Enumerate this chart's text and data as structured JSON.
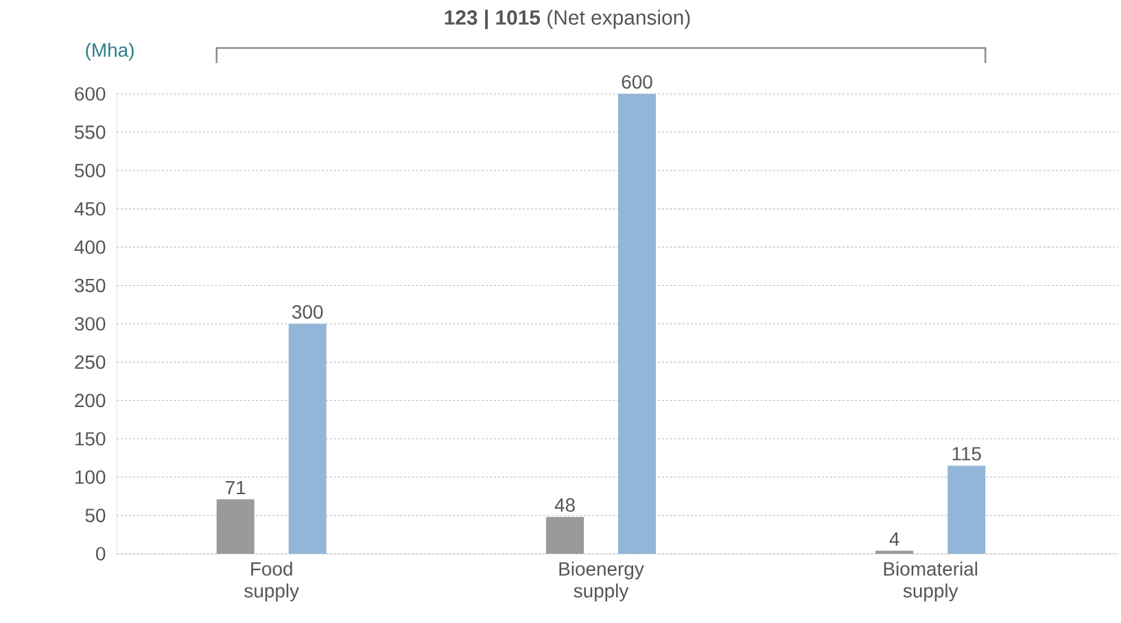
{
  "chart_data": {
    "type": "bar",
    "title": "**123 | 1015** (Net expansion)",
    "ylabel": "(Mha)",
    "categories": [
      "Food supply",
      "Bioenergy supply",
      "Biomaterial supply"
    ],
    "series": [
      {
        "color": "#9a9a9a",
        "values": [
          71,
          48,
          4
        ]
      },
      {
        "color": "#92b5d8",
        "values": [
          300,
          600,
          115
        ]
      }
    ],
    "ylim": [
      0,
      600
    ],
    "yticks": [
      0,
      50,
      100,
      150,
      200,
      250,
      300,
      350,
      400,
      450,
      500,
      550,
      600
    ],
    "grid": "y",
    "data_labels": true
  }
}
